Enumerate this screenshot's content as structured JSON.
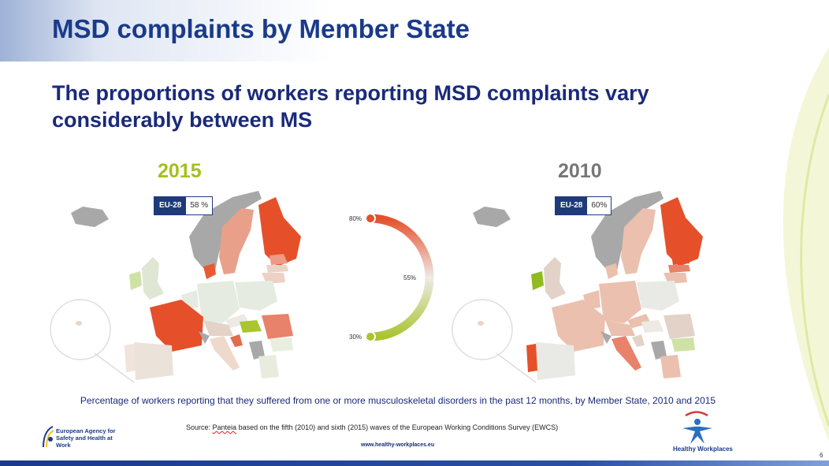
{
  "header": {
    "title": "MSD complaints by Member State",
    "subtitle": "The proportions of workers reporting MSD complaints vary considerably between MS"
  },
  "maps": {
    "left": {
      "year": "2015",
      "eu_label": "EU-28",
      "eu_value": "58 %"
    },
    "right": {
      "year": "2010",
      "eu_label": "EU-28",
      "eu_value": "60%"
    }
  },
  "chart_data": {
    "type": "choropleth",
    "scale": {
      "max_label": "80%",
      "mid_label": "55%",
      "min_label": "30%",
      "max": 80,
      "mid": 55,
      "min": 30
    },
    "colors": {
      "high": "#e5502a",
      "mid": "#eeeae6",
      "low": "#a9c52f",
      "no_data": "#a8a8a8"
    },
    "maps": [
      {
        "year": "2015",
        "eu28_value": 58
      },
      {
        "year": "2010",
        "eu28_value": 60
      }
    ]
  },
  "footer": {
    "caption": "Percentage of workers reporting that they suffered from one or more musculoskeletal disorders in the past 12 months, by Member State, 2010 and 2015",
    "source_prefix": "Source: ",
    "source_word": "Panteia",
    "source_rest": " based on the fifth (2010) and sixth (2015) waves of the European Working Conditions Survey (EWCS)",
    "website": "www.healthy-workplaces.eu",
    "osha_text": "European Agency for Safety and Health at Work",
    "hw_text": "Healthy Workplaces",
    "page_number": "6"
  }
}
